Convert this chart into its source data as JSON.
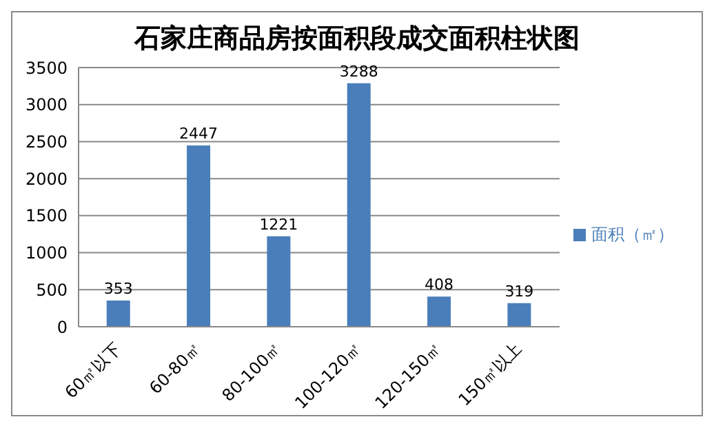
{
  "chart_data": {
    "type": "bar",
    "title": "石家庄商品房按面积段成交面积柱状图",
    "categories": [
      "60㎡以下",
      "60-80㎡",
      "80-100㎡",
      "100-120㎡",
      "120-150㎡",
      "150㎡以上"
    ],
    "series": [
      {
        "name": "面积（㎡）",
        "color": "#4a7ebb",
        "values": [
          353,
          2447,
          1221,
          3288,
          408,
          319
        ]
      }
    ],
    "ylim": [
      0,
      3500
    ],
    "yticks": [
      0,
      500,
      1000,
      1500,
      2000,
      2500,
      3000,
      3500
    ],
    "grid": "y",
    "legend": "right",
    "data_labels": true
  }
}
